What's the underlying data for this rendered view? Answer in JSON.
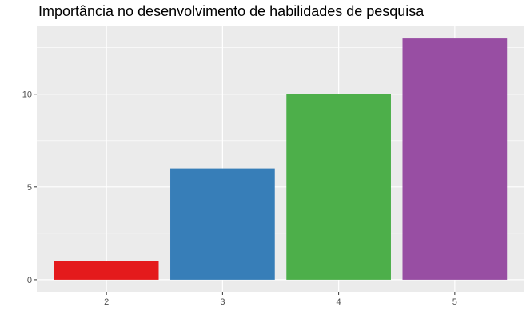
{
  "chart_data": {
    "type": "bar",
    "title": "Importância no desenvolvimento de habilidades de pesquisa",
    "xlabel": "",
    "ylabel": "",
    "categories": [
      "2",
      "3",
      "4",
      "5"
    ],
    "values": [
      1,
      6,
      10,
      13
    ],
    "colors": [
      "#E41A1C",
      "#377EB8",
      "#4DAF4A",
      "#984EA3"
    ],
    "ylim": [
      -0.65,
      13.65
    ],
    "y_ticks": [
      0,
      5,
      10
    ],
    "grid": true,
    "legend": "none",
    "panel_background": "#EBEBEB",
    "grid_color": "#FFFFFF"
  }
}
